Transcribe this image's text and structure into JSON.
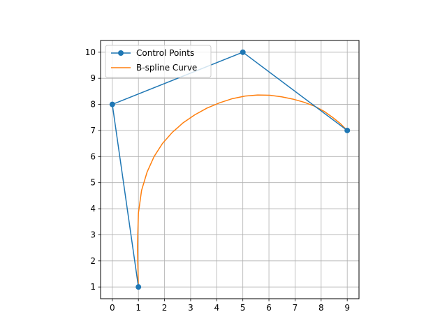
{
  "chart_data": {
    "type": "line",
    "title": "",
    "xlabel": "",
    "ylabel": "",
    "xlim": [
      -0.45,
      9.45
    ],
    "ylim": [
      0.55,
      10.45
    ],
    "x_ticks": [
      0,
      1,
      2,
      3,
      4,
      5,
      6,
      7,
      8,
      9
    ],
    "y_ticks": [
      1,
      2,
      3,
      4,
      5,
      6,
      7,
      8,
      9,
      10
    ],
    "x_tick_labels": [
      "0",
      "1",
      "2",
      "3",
      "4",
      "5",
      "6",
      "7",
      "8",
      "9"
    ],
    "y_tick_labels": [
      "1",
      "2",
      "3",
      "4",
      "5",
      "6",
      "7",
      "8",
      "9",
      "10"
    ],
    "grid": true,
    "legend_position": "top-left",
    "series": [
      {
        "name": "Control Points",
        "style": "line-with-markers",
        "color": "#1f77b4",
        "x": [
          1,
          0,
          5,
          9
        ],
        "y": [
          1,
          8,
          10,
          7
        ]
      },
      {
        "name": "B-spline Curve",
        "style": "line",
        "color": "#ff7f0e",
        "x": [
          1.0,
          0.96,
          1.0,
          1.12,
          1.33,
          1.6,
          1.92,
          2.3,
          2.72,
          3.16,
          3.63,
          4.11,
          4.6,
          5.09,
          5.57,
          6.04,
          6.49,
          6.93,
          7.35,
          7.75,
          8.12,
          8.44,
          8.73,
          9.0
        ],
        "y": [
          1.0,
          2.5,
          3.83,
          4.7,
          5.4,
          6.0,
          6.5,
          6.93,
          7.3,
          7.6,
          7.86,
          8.06,
          8.22,
          8.32,
          8.36,
          8.35,
          8.29,
          8.2,
          8.08,
          7.93,
          7.73,
          7.5,
          7.27,
          7.0
        ]
      }
    ]
  }
}
